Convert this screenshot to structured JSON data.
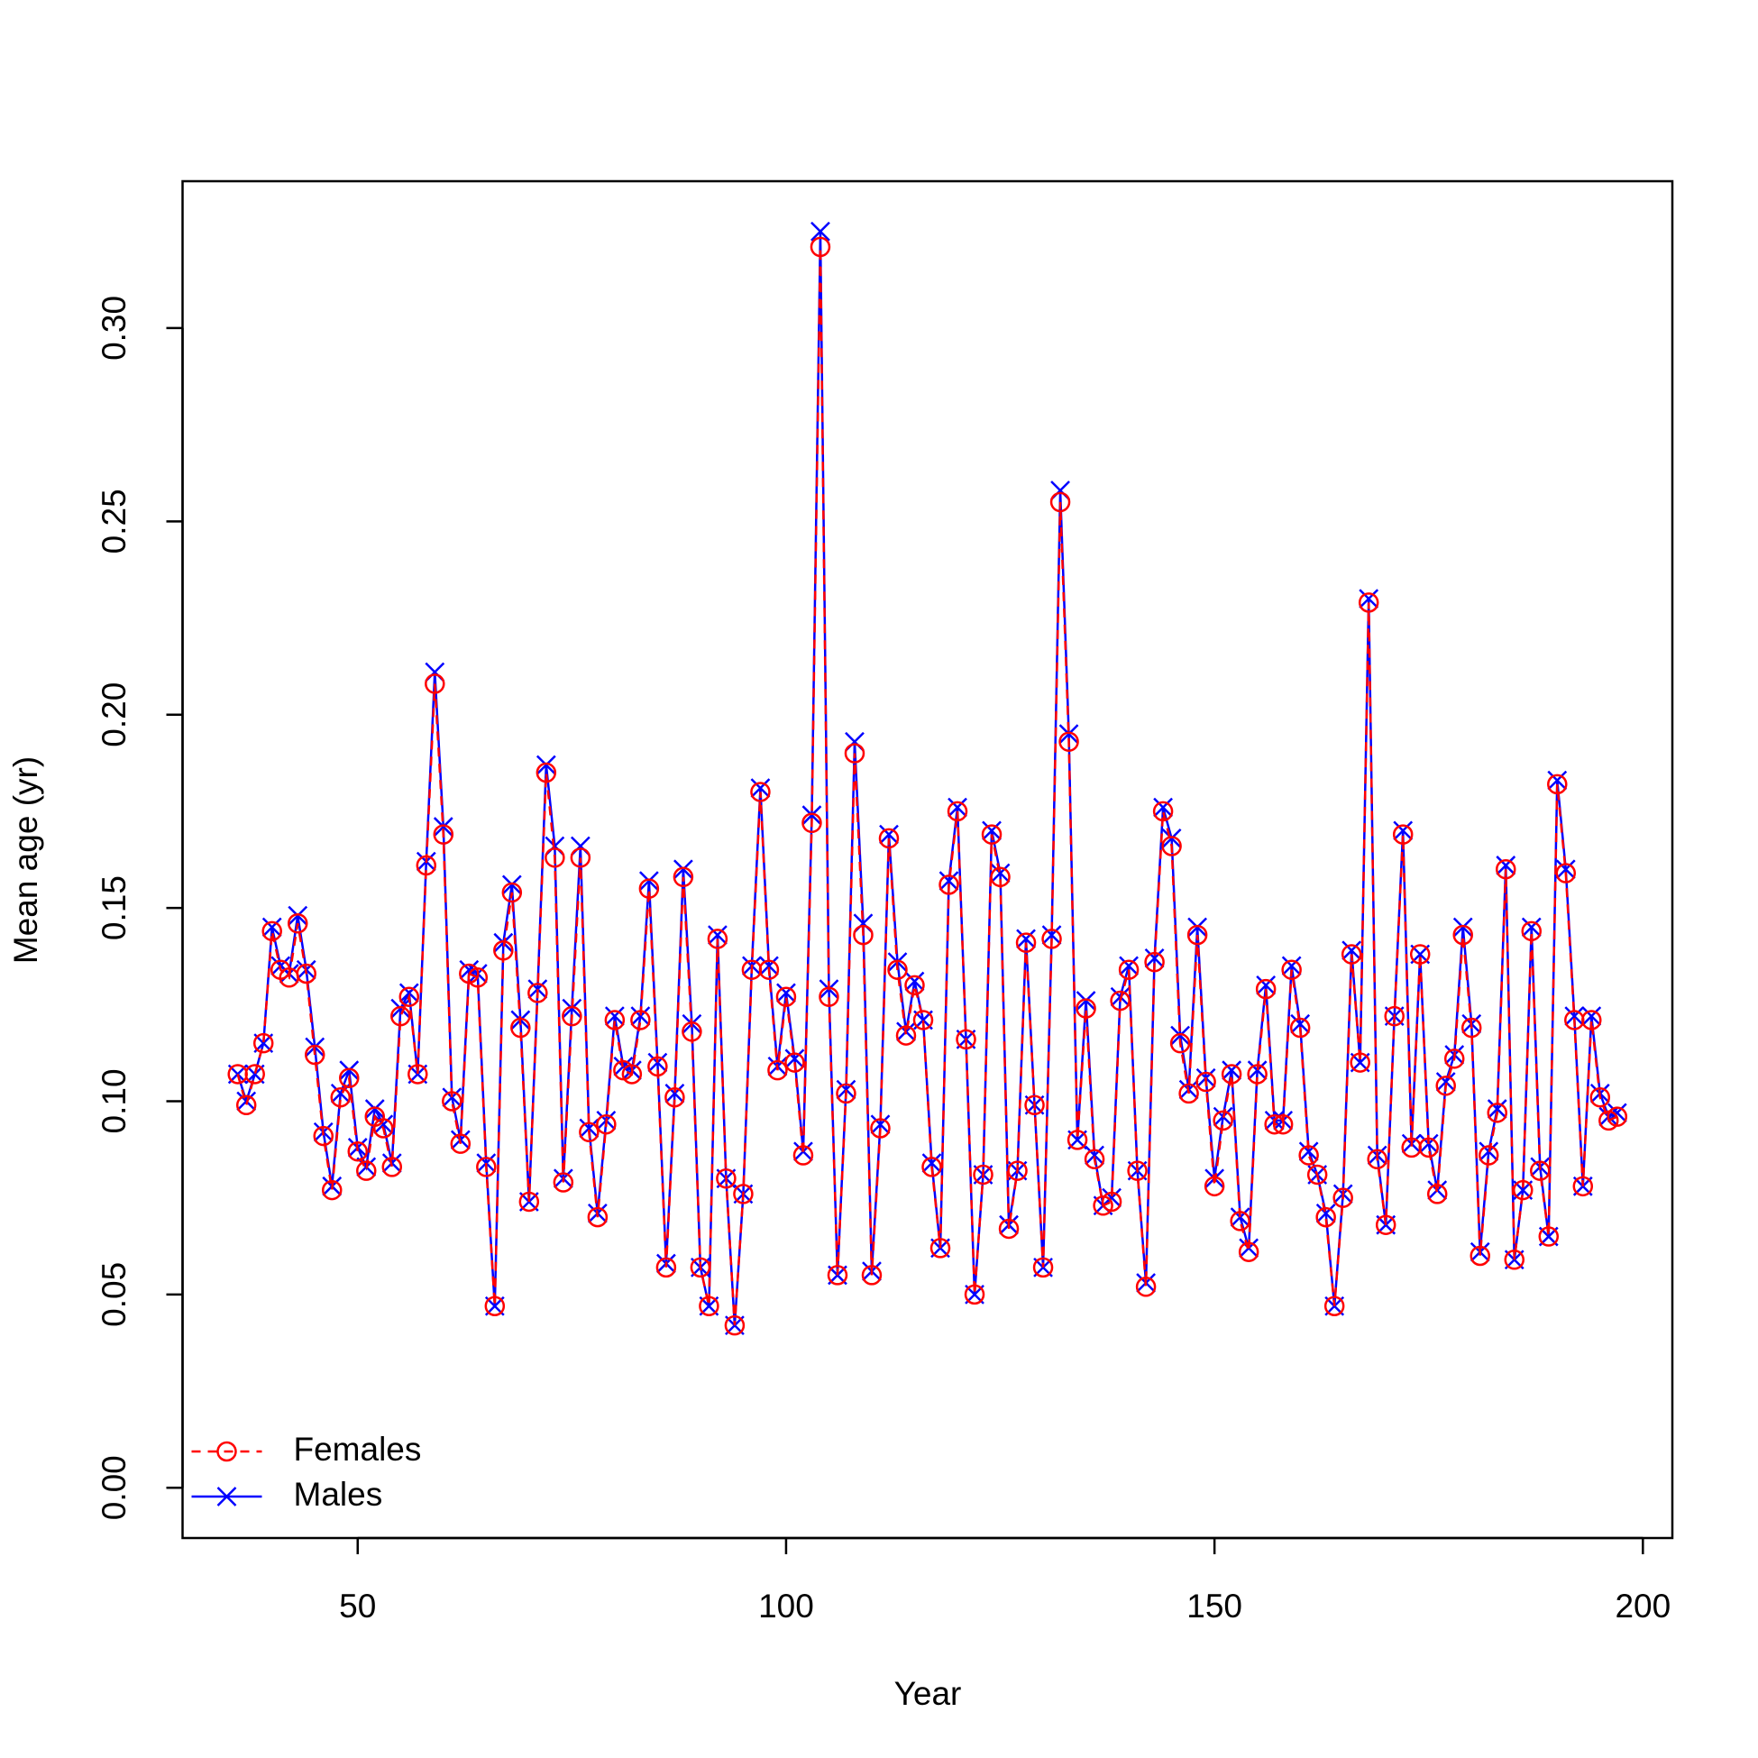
{
  "chart_data": {
    "type": "line",
    "xlabel": "Year",
    "ylabel": "Mean age (yr)",
    "x": [
      36,
      37,
      38,
      39,
      40,
      41,
      42,
      43,
      44,
      45,
      46,
      47,
      48,
      49,
      50,
      51,
      52,
      53,
      54,
      55,
      56,
      57,
      58,
      59,
      60,
      61,
      62,
      63,
      64,
      65,
      66,
      67,
      68,
      69,
      70,
      71,
      72,
      73,
      74,
      75,
      76,
      77,
      78,
      79,
      80,
      81,
      82,
      83,
      84,
      85,
      86,
      87,
      88,
      89,
      90,
      91,
      92,
      93,
      94,
      95,
      96,
      97,
      98,
      99,
      100,
      101,
      102,
      103,
      104,
      105,
      106,
      107,
      108,
      109,
      110,
      111,
      112,
      113,
      114,
      115,
      116,
      117,
      118,
      119,
      120,
      121,
      122,
      123,
      124,
      125,
      126,
      127,
      128,
      129,
      130,
      131,
      132,
      133,
      134,
      135,
      136,
      137,
      138,
      139,
      140,
      141,
      142,
      143,
      144,
      145,
      146,
      147,
      148,
      149,
      150,
      151,
      152,
      153,
      154,
      155,
      156,
      157,
      158,
      159,
      160,
      161,
      162,
      163,
      164,
      165,
      166,
      167,
      168,
      169,
      170,
      171,
      172,
      173,
      174,
      175,
      176,
      177,
      178,
      179,
      180,
      181,
      182,
      183,
      184,
      185,
      186,
      187,
      188,
      189,
      190,
      191,
      192,
      193,
      194,
      195,
      196,
      197
    ],
    "series": [
      {
        "name": "Females",
        "color": "#ff0000",
        "marker": "circle",
        "linestyle": "dashed",
        "values": [
          0.107,
          0.099,
          0.107,
          0.115,
          0.144,
          0.134,
          0.132,
          0.146,
          0.133,
          0.112,
          0.091,
          0.077,
          0.101,
          0.106,
          0.087,
          0.082,
          0.096,
          0.093,
          0.083,
          0.122,
          0.127,
          0.107,
          0.161,
          0.208,
          0.169,
          0.1,
          0.089,
          0.133,
          0.132,
          0.083,
          0.047,
          0.139,
          0.154,
          0.119,
          0.074,
          0.128,
          0.185,
          0.163,
          0.079,
          0.122,
          0.163,
          0.092,
          0.07,
          0.094,
          0.121,
          0.108,
          0.107,
          0.121,
          0.155,
          0.109,
          0.057,
          0.101,
          0.158,
          0.118,
          0.057,
          0.047,
          0.142,
          0.08,
          0.042,
          0.076,
          0.134,
          0.18,
          0.134,
          0.108,
          0.127,
          0.11,
          0.086,
          0.172,
          0.321,
          0.127,
          0.055,
          0.102,
          0.19,
          0.143,
          0.055,
          0.093,
          0.168,
          0.134,
          0.117,
          0.13,
          0.121,
          0.083,
          0.062,
          0.156,
          0.175,
          0.116,
          0.05,
          0.081,
          0.169,
          0.158,
          0.067,
          0.082,
          0.141,
          0.099,
          0.057,
          0.142,
          0.255,
          0.193,
          0.09,
          0.124,
          0.085,
          0.073,
          0.074,
          0.126,
          0.134,
          0.082,
          0.052,
          0.136,
          0.175,
          0.166,
          0.115,
          0.102,
          0.143,
          0.105,
          0.078,
          0.095,
          0.107,
          0.069,
          0.061,
          0.107,
          0.129,
          0.094,
          0.094,
          0.134,
          0.119,
          0.086,
          0.081,
          0.07,
          0.047,
          0.075,
          0.138,
          0.11,
          0.229,
          0.085,
          0.068,
          0.122,
          0.169,
          0.088,
          0.138,
          0.088,
          0.076,
          0.104,
          0.111,
          0.143,
          0.119,
          0.06,
          0.086,
          0.097,
          0.16,
          0.059,
          0.077,
          0.144,
          0.082,
          0.065,
          0.182,
          0.159,
          0.121,
          0.078,
          0.121,
          0.101,
          0.095,
          0.096
        ]
      },
      {
        "name": "Males",
        "color": "#0000ff",
        "marker": "x",
        "linestyle": "solid",
        "values": [
          0.107,
          0.1,
          0.107,
          0.115,
          0.145,
          0.135,
          0.133,
          0.148,
          0.134,
          0.114,
          0.092,
          0.078,
          0.102,
          0.108,
          0.088,
          0.083,
          0.098,
          0.094,
          0.084,
          0.124,
          0.128,
          0.107,
          0.162,
          0.211,
          0.171,
          0.101,
          0.09,
          0.134,
          0.133,
          0.084,
          0.047,
          0.141,
          0.156,
          0.121,
          0.074,
          0.129,
          0.187,
          0.166,
          0.08,
          0.124,
          0.166,
          0.093,
          0.071,
          0.095,
          0.122,
          0.109,
          0.108,
          0.122,
          0.157,
          0.11,
          0.058,
          0.102,
          0.16,
          0.12,
          0.057,
          0.047,
          0.143,
          0.08,
          0.042,
          0.076,
          0.135,
          0.181,
          0.135,
          0.109,
          0.128,
          0.111,
          0.087,
          0.174,
          0.325,
          0.129,
          0.055,
          0.103,
          0.193,
          0.146,
          0.056,
          0.094,
          0.169,
          0.136,
          0.118,
          0.131,
          0.121,
          0.084,
          0.062,
          0.157,
          0.176,
          0.116,
          0.05,
          0.081,
          0.17,
          0.159,
          0.068,
          0.082,
          0.142,
          0.099,
          0.057,
          0.143,
          0.258,
          0.195,
          0.09,
          0.126,
          0.086,
          0.073,
          0.075,
          0.127,
          0.135,
          0.082,
          0.053,
          0.137,
          0.176,
          0.168,
          0.117,
          0.103,
          0.145,
          0.106,
          0.08,
          0.096,
          0.108,
          0.07,
          0.062,
          0.108,
          0.13,
          0.095,
          0.095,
          0.135,
          0.12,
          0.087,
          0.081,
          0.071,
          0.047,
          0.076,
          0.139,
          0.11,
          0.23,
          0.086,
          0.068,
          0.122,
          0.17,
          0.089,
          0.138,
          0.089,
          0.077,
          0.105,
          0.112,
          0.145,
          0.12,
          0.061,
          0.087,
          0.098,
          0.161,
          0.059,
          0.077,
          0.145,
          0.083,
          0.065,
          0.183,
          0.16,
          0.122,
          0.078,
          0.122,
          0.102,
          0.096,
          0.097
        ]
      }
    ],
    "xlim": [
      29.56,
      203.44
    ],
    "xticks": [
      50,
      100,
      150,
      200
    ],
    "ylim": [
      -0.013,
      0.338
    ],
    "yticks": [
      {
        "value": 0,
        "label": "0.00"
      },
      {
        "value": 0.05,
        "label": "0.05"
      },
      {
        "value": 0.1,
        "label": "0.10"
      },
      {
        "value": 0.15,
        "label": "0.15"
      },
      {
        "value": 0.2,
        "label": "0.20"
      },
      {
        "value": 0.25,
        "label": "0.25"
      },
      {
        "value": 0.3,
        "label": "0.30"
      }
    ],
    "legend": "bottomleft"
  }
}
